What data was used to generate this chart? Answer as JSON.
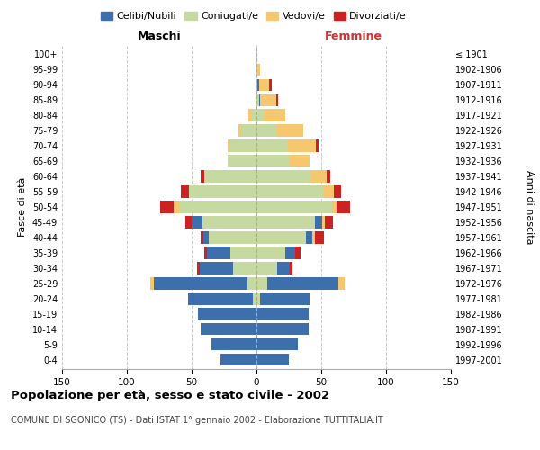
{
  "age_groups": [
    "0-4",
    "5-9",
    "10-14",
    "15-19",
    "20-24",
    "25-29",
    "30-34",
    "35-39",
    "40-44",
    "45-49",
    "50-54",
    "55-59",
    "60-64",
    "65-69",
    "70-74",
    "75-79",
    "80-84",
    "85-89",
    "90-94",
    "95-99",
    "100+"
  ],
  "birth_years": [
    "1997-2001",
    "1992-1996",
    "1987-1991",
    "1982-1986",
    "1977-1981",
    "1972-1976",
    "1967-1971",
    "1962-1966",
    "1957-1961",
    "1952-1956",
    "1947-1951",
    "1942-1946",
    "1937-1941",
    "1932-1936",
    "1927-1931",
    "1922-1926",
    "1917-1921",
    "1912-1916",
    "1907-1911",
    "1902-1906",
    "≤ 1901"
  ],
  "maschi": {
    "celibi": [
      28,
      35,
      43,
      45,
      50,
      72,
      26,
      18,
      4,
      8,
      0,
      0,
      0,
      0,
      0,
      0,
      0,
      0,
      0,
      0,
      0
    ],
    "coniugati": [
      0,
      0,
      0,
      0,
      3,
      7,
      18,
      20,
      37,
      42,
      60,
      52,
      40,
      22,
      20,
      12,
      4,
      1,
      0,
      0,
      0
    ],
    "vedovi": [
      0,
      0,
      0,
      0,
      0,
      3,
      0,
      0,
      0,
      0,
      4,
      0,
      0,
      0,
      2,
      2,
      2,
      0,
      0,
      0,
      0
    ],
    "divorziati": [
      0,
      0,
      0,
      0,
      0,
      0,
      2,
      2,
      2,
      5,
      10,
      6,
      3,
      0,
      0,
      0,
      0,
      0,
      0,
      0,
      0
    ]
  },
  "femmine": {
    "nubili": [
      25,
      32,
      40,
      40,
      38,
      55,
      10,
      8,
      5,
      6,
      0,
      0,
      0,
      0,
      0,
      0,
      0,
      1,
      1,
      0,
      0
    ],
    "coniugate": [
      0,
      0,
      0,
      0,
      3,
      8,
      16,
      22,
      38,
      45,
      58,
      52,
      42,
      26,
      24,
      16,
      6,
      2,
      1,
      0,
      0
    ],
    "vedove": [
      0,
      0,
      0,
      0,
      0,
      5,
      0,
      0,
      2,
      2,
      4,
      8,
      12,
      15,
      22,
      20,
      16,
      12,
      8,
      3,
      0
    ],
    "divorziate": [
      0,
      0,
      0,
      0,
      0,
      0,
      2,
      4,
      7,
      6,
      10,
      5,
      3,
      0,
      2,
      0,
      0,
      2,
      2,
      0,
      0
    ]
  },
  "colors": {
    "celibi": "#3d6fad",
    "coniugati": "#c5d9a0",
    "vedovi": "#f5c870",
    "divorziati": "#cc2222"
  },
  "xlim": 150,
  "title": "Popolazione per età, sesso e stato civile - 2002",
  "subtitle": "COMUNE DI SGONICO (TS) - Dati ISTAT 1° gennaio 2002 - Elaborazione TUTTITALIA.IT",
  "ylabel_left": "Fasce di età",
  "ylabel_right": "Anni di nascita",
  "xlabel_left": "Maschi",
  "xlabel_right": "Femmine"
}
